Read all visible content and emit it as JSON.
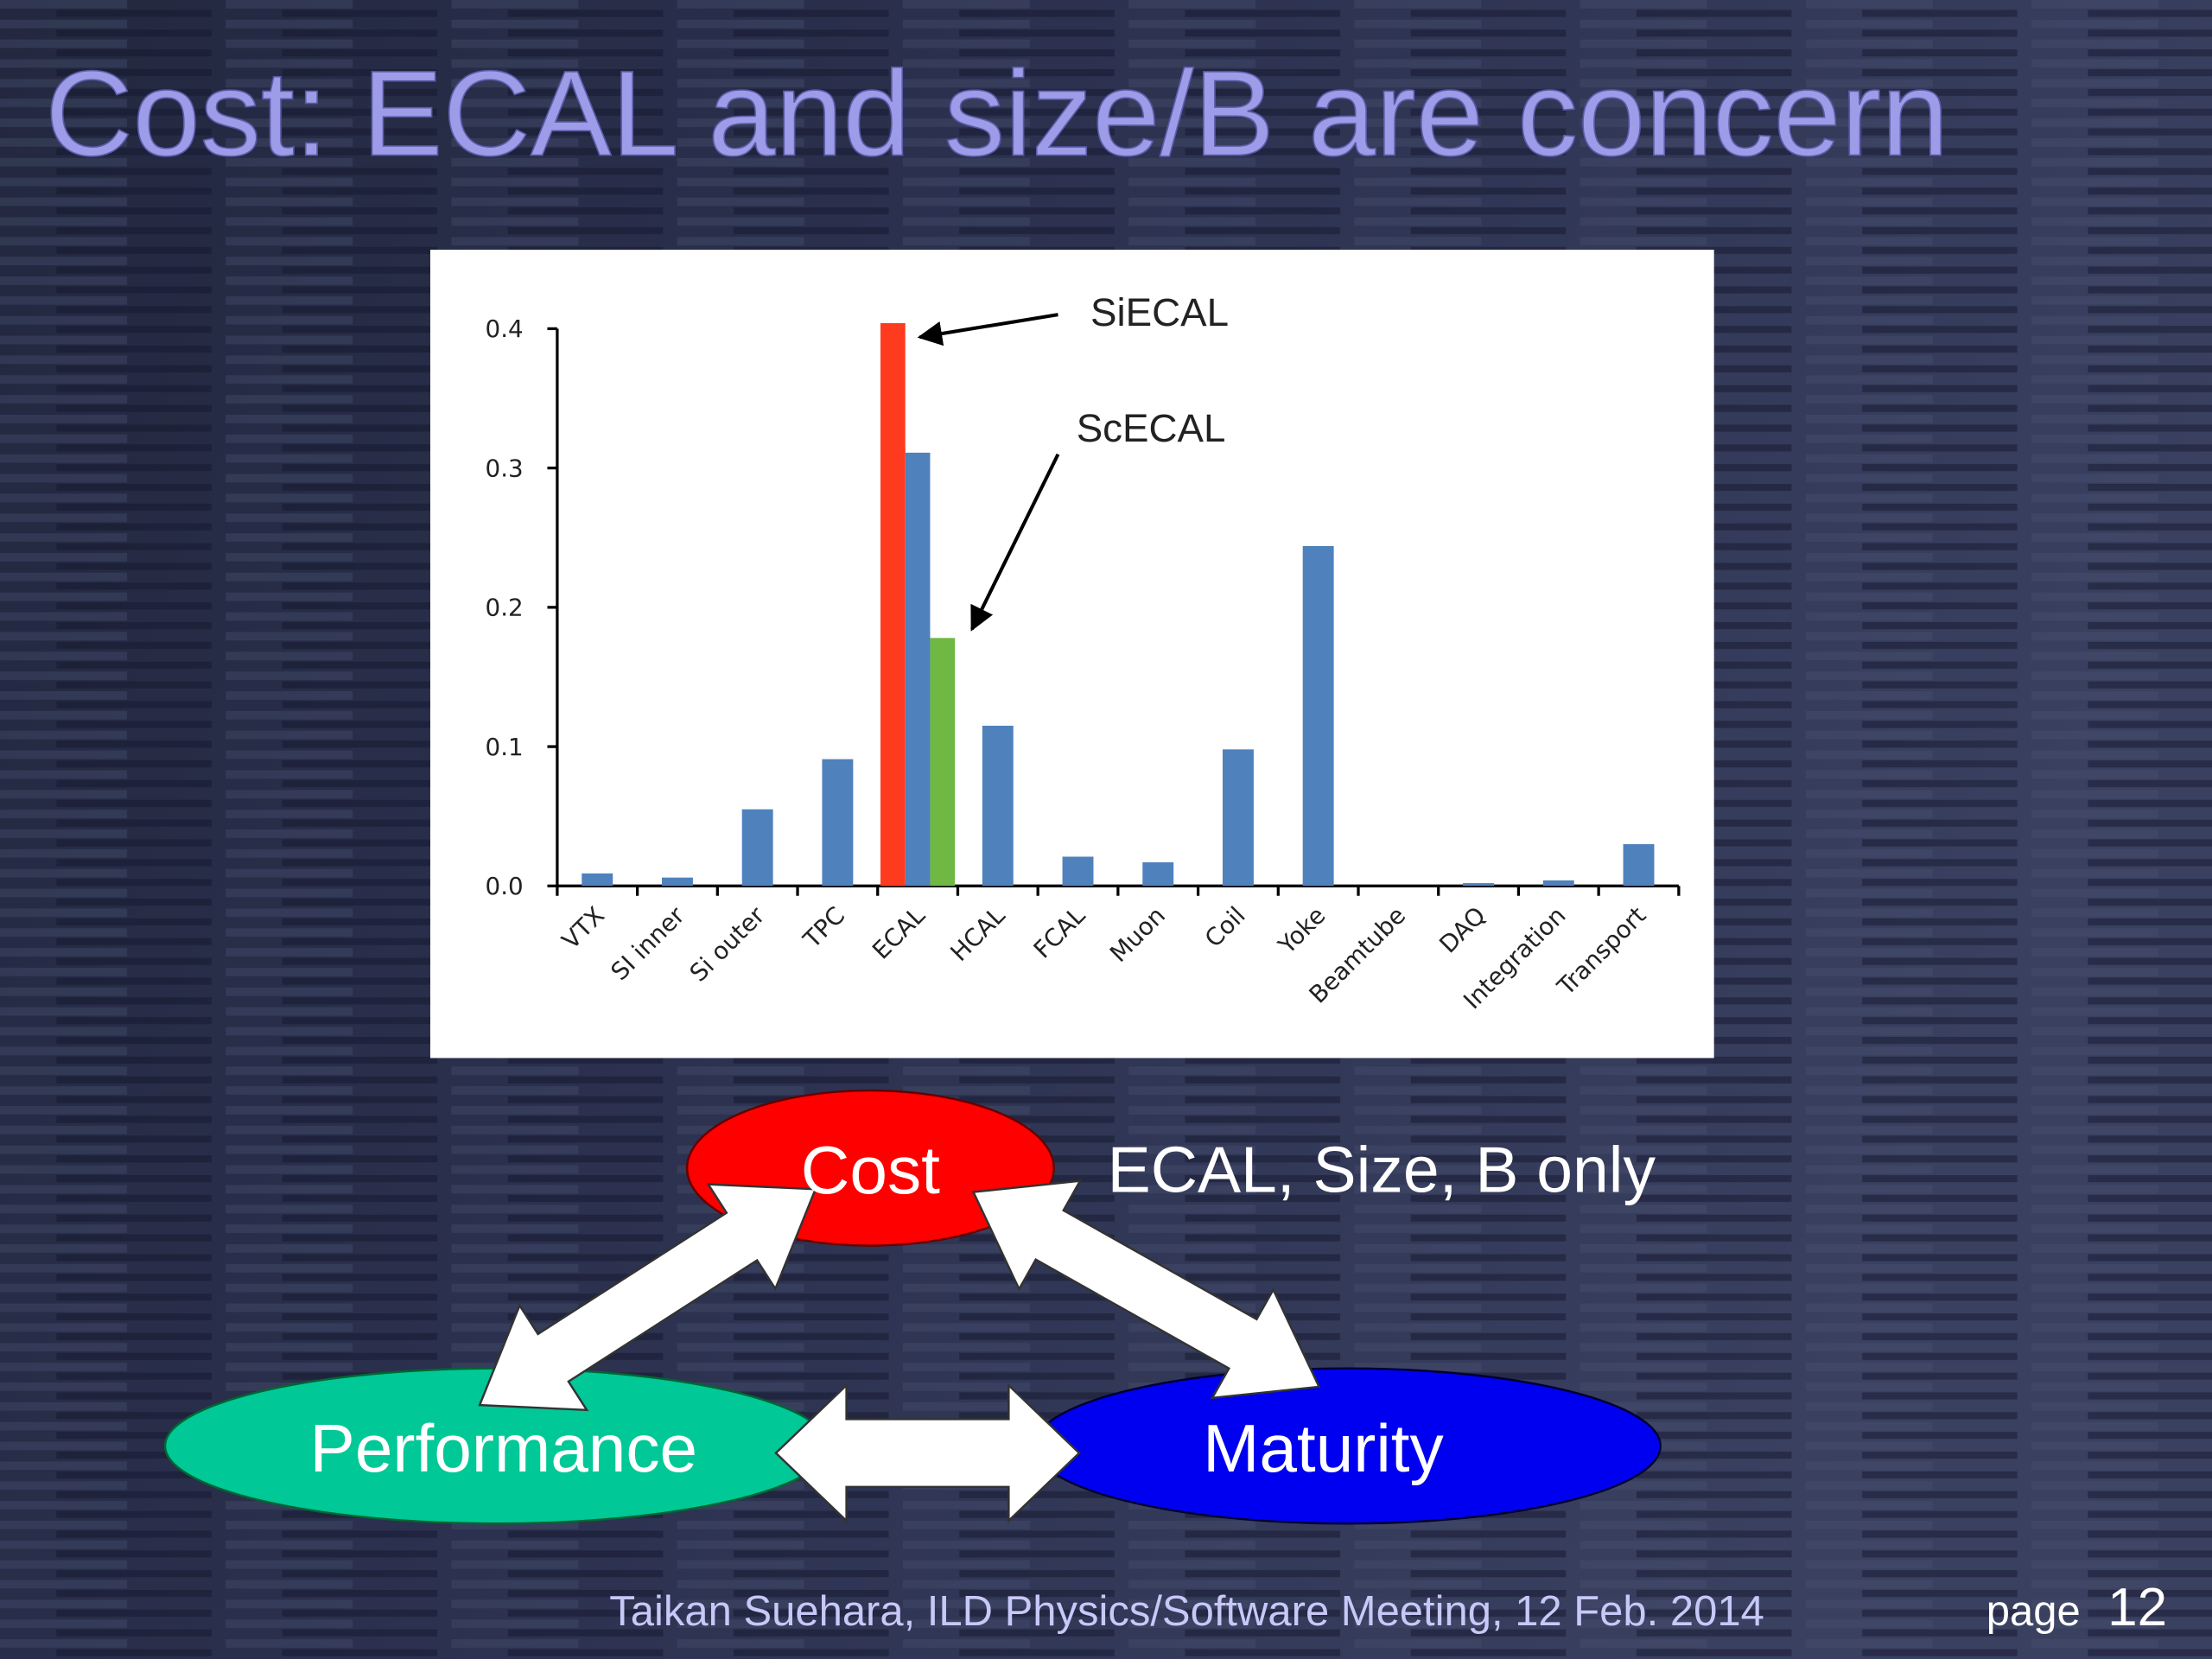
{
  "title": "Cost: ECAL and size/B are concern",
  "chart_data": {
    "type": "bar",
    "categories": [
      "VTX",
      "SI inner",
      "Si outer",
      "TPC",
      "ECAL",
      "HCAL",
      "FCAL",
      "Muon",
      "Coil",
      "Yoke",
      "Beamtube",
      "DAQ",
      "Integration",
      "Transport"
    ],
    "series": [
      {
        "name": "SiECAL",
        "color": "#ff3b1f",
        "values": [
          null,
          null,
          null,
          null,
          0.404,
          null,
          null,
          null,
          null,
          null,
          null,
          null,
          null,
          null
        ]
      },
      {
        "color": "#4f81bd",
        "values": [
          0.009,
          0.006,
          0.055,
          0.091,
          0.311,
          0.115,
          0.021,
          0.017,
          0.098,
          0.244,
          0,
          0.002,
          0.004,
          0.03
        ]
      },
      {
        "name": "ScECAL",
        "color": "#70b844",
        "values": [
          null,
          null,
          null,
          null,
          0.178,
          null,
          null,
          null,
          null,
          null,
          null,
          null,
          null,
          null
        ]
      }
    ],
    "ylim": [
      0,
      0.4
    ],
    "yticks": [
      {
        "value": 0,
        "label": "0.0"
      },
      0.1,
      0.2,
      0.3,
      0.4
    ],
    "grid": false
  },
  "diagram": {
    "nodes": [
      {
        "label": "Cost"
      },
      {
        "label": "Performance"
      },
      {
        "label": "Maturity"
      }
    ],
    "note": "ECAL, Size, B only"
  },
  "footer": {
    "text": "Taikan Suehara, ILD Physics/Software Meeting, 12 Feb. 2014",
    "page_label": "page",
    "page_number": "12"
  }
}
